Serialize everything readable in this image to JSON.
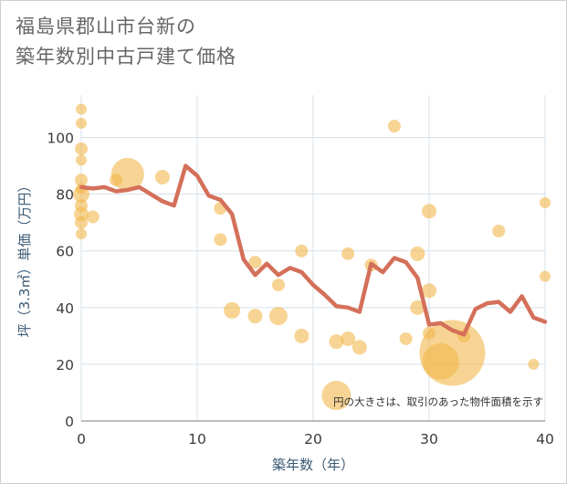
{
  "title_lines": [
    "福島県郡山市台新の",
    "築年数別中古戸建て価格"
  ],
  "chart_data": {
    "type": "scatter+line",
    "title": "福島県郡山市台新の 築年数別中古戸建て価格",
    "xlabel": "築年数（年）",
    "ylabel": "坪（3.3㎡）単価（万円）",
    "xlim": [
      0,
      40
    ],
    "ylim": [
      0,
      115
    ],
    "xticks": [
      0,
      10,
      20,
      30,
      40
    ],
    "yticks": [
      0,
      20,
      40,
      60,
      80,
      100
    ],
    "grid": true,
    "note": "円の大きさは、取引のあった物件面積を示す",
    "colors": {
      "bubble": "#f2b84b",
      "line": "#d4705a",
      "grid": "#d6e0ea"
    },
    "bubbles": [
      {
        "x": 0,
        "y": 110,
        "size": 6
      },
      {
        "x": 0,
        "y": 105,
        "size": 6
      },
      {
        "x": 0,
        "y": 96,
        "size": 7
      },
      {
        "x": 0,
        "y": 92,
        "size": 6
      },
      {
        "x": 0,
        "y": 85,
        "size": 7
      },
      {
        "x": 0,
        "y": 80,
        "size": 9
      },
      {
        "x": 0,
        "y": 76,
        "size": 7
      },
      {
        "x": 0,
        "y": 73,
        "size": 8
      },
      {
        "x": 0,
        "y": 70,
        "size": 7
      },
      {
        "x": 0,
        "y": 66,
        "size": 6
      },
      {
        "x": 0,
        "y": 82,
        "size": 6
      },
      {
        "x": 1,
        "y": 72,
        "size": 7
      },
      {
        "x": 3,
        "y": 85,
        "size": 7
      },
      {
        "x": 4,
        "y": 87,
        "size": 18
      },
      {
        "x": 7,
        "y": 86,
        "size": 8
      },
      {
        "x": 12,
        "y": 75,
        "size": 7
      },
      {
        "x": 12,
        "y": 64,
        "size": 7
      },
      {
        "x": 13,
        "y": 39,
        "size": 9
      },
      {
        "x": 15,
        "y": 56,
        "size": 7
      },
      {
        "x": 15,
        "y": 37,
        "size": 8
      },
      {
        "x": 17,
        "y": 48,
        "size": 7
      },
      {
        "x": 17,
        "y": 37,
        "size": 10
      },
      {
        "x": 19,
        "y": 60,
        "size": 7
      },
      {
        "x": 19,
        "y": 30,
        "size": 8
      },
      {
        "x": 22,
        "y": 28,
        "size": 8
      },
      {
        "x": 22,
        "y": 9,
        "size": 16
      },
      {
        "x": 23,
        "y": 59,
        "size": 7
      },
      {
        "x": 23,
        "y": 29,
        "size": 8
      },
      {
        "x": 24,
        "y": 26,
        "size": 8
      },
      {
        "x": 25,
        "y": 55,
        "size": 7
      },
      {
        "x": 27,
        "y": 104,
        "size": 7
      },
      {
        "x": 28,
        "y": 29,
        "size": 7
      },
      {
        "x": 29,
        "y": 59,
        "size": 8
      },
      {
        "x": 29,
        "y": 40,
        "size": 8
      },
      {
        "x": 30,
        "y": 74,
        "size": 8
      },
      {
        "x": 30,
        "y": 46,
        "size": 8
      },
      {
        "x": 30,
        "y": 31,
        "size": 7
      },
      {
        "x": 31,
        "y": 21,
        "size": 20
      },
      {
        "x": 32,
        "y": 24,
        "size": 36
      },
      {
        "x": 33,
        "y": 30,
        "size": 7
      },
      {
        "x": 36,
        "y": 67,
        "size": 7
      },
      {
        "x": 39,
        "y": 20,
        "size": 6
      },
      {
        "x": 40,
        "y": 77,
        "size": 6
      },
      {
        "x": 40,
        "y": 51,
        "size": 6
      }
    ],
    "line": {
      "x": [
        0,
        1,
        2,
        3,
        4,
        5,
        6,
        7,
        8,
        9,
        10,
        11,
        12,
        13,
        14,
        15,
        16,
        17,
        18,
        19,
        20,
        21,
        22,
        23,
        24,
        25,
        26,
        27,
        28,
        29,
        30,
        31,
        32,
        33,
        34,
        35,
        36,
        37,
        38,
        39,
        40
      ],
      "y": [
        82.5,
        82,
        82.5,
        81,
        81.5,
        82.5,
        80,
        77.5,
        76,
        90,
        86.5,
        79.5,
        78,
        73,
        57,
        51.5,
        55.5,
        51.5,
        54,
        52.5,
        48,
        44.5,
        40.5,
        40,
        38.5,
        55.5,
        52.5,
        57.5,
        56,
        50.5,
        34,
        34.5,
        32,
        30.5,
        39.5,
        41.5,
        42,
        38.5,
        44,
        36.5,
        35
      ]
    }
  }
}
